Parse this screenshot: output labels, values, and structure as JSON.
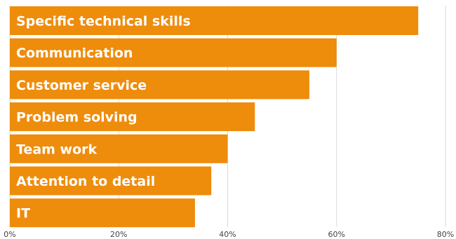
{
  "chart_data": {
    "type": "bar",
    "orientation": "horizontal",
    "categories": [
      "Specific technical skills",
      "Communication",
      "Customer service",
      "Problem solving",
      "Team work",
      "Attention to detail",
      "IT"
    ],
    "values": [
      75,
      60,
      55,
      45,
      40,
      37,
      34
    ],
    "xlim": [
      0,
      80
    ],
    "x_ticks": [
      "0%",
      "20%",
      "40%",
      "60%",
      "80%"
    ],
    "tick_values": [
      0,
      20,
      40,
      60,
      80
    ],
    "grid": "vertical",
    "bar_color": "#EE8C0C",
    "label_color": "#FFFFFF",
    "grid_color": "#D9D9D9",
    "title": "",
    "xlabel": "",
    "ylabel": ""
  }
}
